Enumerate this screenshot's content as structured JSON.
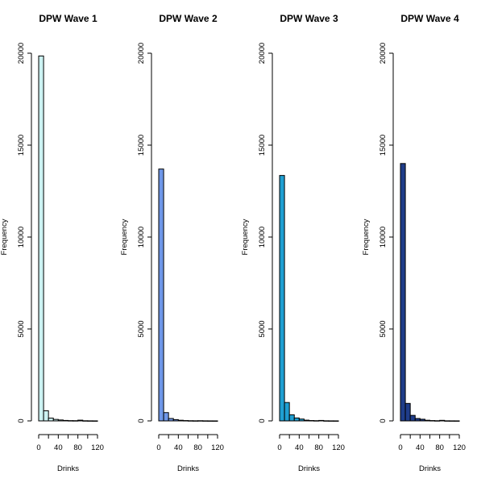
{
  "chart_data": [
    {
      "type": "bar",
      "title": "DPW Wave 1",
      "xlabel": "Drinks",
      "ylabel": "Frequency",
      "color": "#CCF2F2",
      "bin_width": 10,
      "bin_starts": [
        0,
        10,
        20,
        30,
        40,
        50,
        60,
        70,
        80,
        90,
        100,
        110
      ],
      "values": [
        19850,
        550,
        150,
        80,
        50,
        25,
        15,
        12,
        40,
        8,
        4,
        2
      ],
      "xlim": [
        0,
        120
      ],
      "ylim": [
        0,
        20000
      ],
      "x_ticks": [
        "0",
        "40",
        "80",
        "120"
      ],
      "y_ticks": [
        "0",
        "5000",
        "10000",
        "15000",
        "20000"
      ]
    },
    {
      "type": "bar",
      "title": "DPW Wave 2",
      "xlabel": "Drinks",
      "ylabel": "Frequency",
      "color": "#6F97E8",
      "bin_width": 10,
      "bin_starts": [
        0,
        10,
        20,
        30,
        40,
        50,
        60,
        70,
        80,
        90,
        100,
        110
      ],
      "values": [
        13700,
        450,
        130,
        70,
        35,
        18,
        10,
        6,
        10,
        4,
        2,
        1
      ],
      "xlim": [
        0,
        120
      ],
      "ylim": [
        0,
        20000
      ],
      "x_ticks": [
        "0",
        "40",
        "80",
        "120"
      ],
      "y_ticks": [
        "0",
        "5000",
        "10000",
        "15000",
        "20000"
      ]
    },
    {
      "type": "bar",
      "title": "DPW Wave 3",
      "xlabel": "Drinks",
      "ylabel": "Frequency",
      "color": "#1F9FD2",
      "bin_width": 10,
      "bin_starts": [
        0,
        10,
        20,
        30,
        40,
        50,
        60,
        70,
        80,
        90,
        100,
        110
      ],
      "values": [
        13350,
        1000,
        330,
        160,
        100,
        40,
        20,
        12,
        25,
        6,
        3,
        2
      ],
      "xlim": [
        0,
        120
      ],
      "ylim": [
        0,
        20000
      ],
      "x_ticks": [
        "0",
        "40",
        "80",
        "120"
      ],
      "y_ticks": [
        "0",
        "5000",
        "10000",
        "15000",
        "20000"
      ]
    },
    {
      "type": "bar",
      "title": "DPW Wave 4",
      "xlabel": "Drinks",
      "ylabel": "Frequency",
      "color": "#1F3D8A",
      "bin_width": 10,
      "bin_starts": [
        0,
        10,
        20,
        30,
        40,
        50,
        60,
        70,
        80,
        90,
        100,
        110
      ],
      "values": [
        14000,
        950,
        300,
        130,
        90,
        35,
        18,
        10,
        30,
        5,
        3,
        2
      ],
      "xlim": [
        0,
        120
      ],
      "ylim": [
        0,
        20000
      ],
      "x_ticks": [
        "0",
        "40",
        "80",
        "120"
      ],
      "y_ticks": [
        "0",
        "5000",
        "10000",
        "15000",
        "20000"
      ]
    }
  ]
}
